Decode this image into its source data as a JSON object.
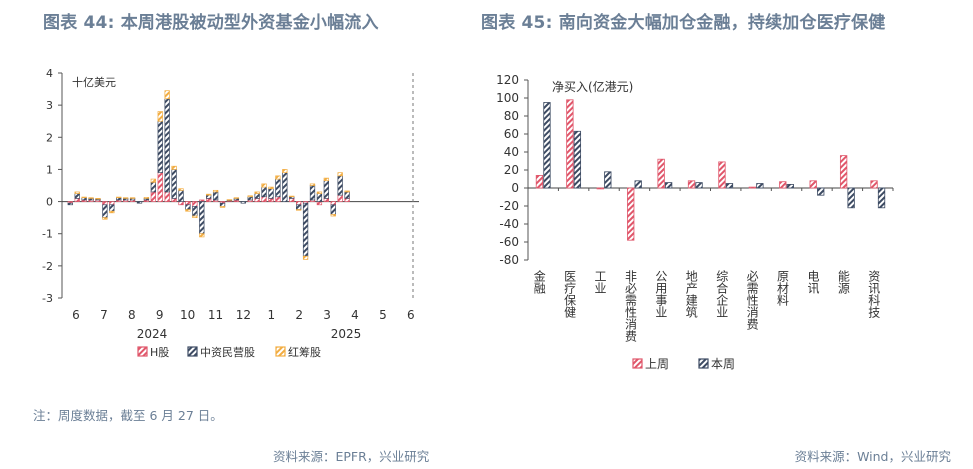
{
  "left": {
    "title": "图表 44: 本周港股被动型外资基金小幅流入",
    "source": "资料来源：EPFR，兴业研究",
    "note": "注：周度数据，截至 6 月 27 日。",
    "chart_data": {
      "type": "bar",
      "stacked": true,
      "unit_label": "十亿美元",
      "ylim": [
        -3,
        4
      ],
      "yticks": [
        -3,
        -2,
        -1,
        0,
        1,
        2,
        3,
        4
      ],
      "month_labels": [
        "6",
        "7",
        "8",
        "9",
        "10",
        "11",
        "12",
        "1",
        "2",
        "3",
        "4",
        "5",
        "6"
      ],
      "year_labels": [
        "2024",
        "2025"
      ],
      "colors": {
        "H股": "#e0566a",
        "中资民营股": "#3d4b63",
        "红筹股": "#f2ad42"
      },
      "series": [
        {
          "name": "H股",
          "values": [
            -0.05,
            0.1,
            0.05,
            0.05,
            0.05,
            -0.1,
            -0.1,
            0.05,
            0.05,
            0.05,
            0.0,
            0.05,
            0.3,
            0.9,
            0.3,
            0.1,
            -0.1,
            -0.1,
            -0.15,
            0.05,
            0.1,
            0.05,
            -0.05,
            0.02,
            0.05,
            0.0,
            0.05,
            0.1,
            0.15,
            0.1,
            0.15,
            0.0,
            0.1,
            -0.1,
            -0.05,
            0.05,
            -0.1,
            0.1,
            -0.1,
            0.2,
            0.1
          ]
        },
        {
          "name": "中资民营股",
          "values": [
            -0.05,
            0.15,
            0.07,
            0.05,
            0.03,
            -0.4,
            -0.2,
            0.07,
            0.05,
            0.05,
            -0.05,
            0.05,
            0.3,
            1.6,
            2.9,
            0.9,
            0.35,
            -0.15,
            -0.3,
            -1.0,
            0.1,
            0.25,
            -0.1,
            0.03,
            0.05,
            -0.05,
            0.1,
            0.15,
            0.3,
            0.3,
            0.55,
            0.9,
            0.05,
            -0.15,
            -1.65,
            0.45,
            0.25,
            0.55,
            -0.3,
            0.6,
            0.2
          ]
        },
        {
          "name": "红筹股",
          "values": [
            0.0,
            0.05,
            0.02,
            0.02,
            0.02,
            -0.05,
            -0.05,
            0.02,
            0.02,
            0.02,
            0.0,
            0.03,
            0.1,
            0.3,
            0.25,
            0.1,
            0.05,
            -0.05,
            -0.05,
            -0.1,
            0.03,
            0.05,
            -0.03,
            0.01,
            0.02,
            0.0,
            0.03,
            0.05,
            0.1,
            0.05,
            0.1,
            0.1,
            0.02,
            -0.02,
            -0.1,
            0.05,
            0.05,
            0.08,
            -0.05,
            0.1,
            0.03
          ]
        }
      ]
    }
  },
  "right": {
    "title": "图表 45: 南向资金大幅加仓金融，持续加仓医疗保健",
    "source": "资料来源：Wind，兴业研究",
    "chart_data": {
      "type": "bar",
      "unit_label": "净买入(亿港元)",
      "ylim": [
        -80,
        120
      ],
      "yticks": [
        -80,
        -60,
        -40,
        -20,
        0,
        20,
        40,
        60,
        80,
        100,
        120
      ],
      "categories": [
        "金融",
        "医疗保健",
        "工业",
        "非必需性消费",
        "公用事业",
        "地产建筑",
        "综合企业",
        "必需性消费",
        "原材料",
        "电讯",
        "能源",
        "资讯科技"
      ],
      "colors": {
        "上周": "#e0566a",
        "本周": "#3d4b63"
      },
      "series": [
        {
          "name": "上周",
          "values": [
            14,
            98,
            -1,
            -58,
            32,
            8,
            29,
            1,
            7,
            8,
            36,
            8
          ]
        },
        {
          "name": "本周",
          "values": [
            95,
            63,
            18,
            8,
            6,
            6,
            5,
            5,
            4,
            -8,
            -22,
            -22
          ]
        }
      ]
    }
  }
}
